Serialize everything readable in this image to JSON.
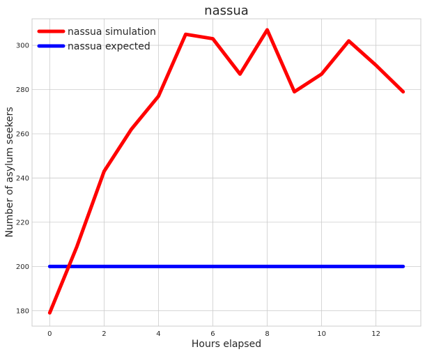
{
  "chart_data": {
    "type": "line",
    "title": "nassua",
    "xlabel": "Hours elapsed",
    "ylabel": "Number of asylum seekers",
    "x": [
      0,
      1,
      2,
      3,
      4,
      5,
      6,
      7,
      8,
      9,
      10,
      11,
      12,
      13
    ],
    "xlim": [
      -0.65,
      13.65
    ],
    "ylim": [
      173,
      312
    ],
    "xticks": [
      0,
      2,
      4,
      6,
      8,
      10,
      12
    ],
    "yticks": [
      180,
      200,
      220,
      240,
      260,
      280,
      300
    ],
    "grid": true,
    "legend_position": "top-left",
    "series": [
      {
        "name": "nassua simulation",
        "color": "#ff0000",
        "values": [
          179,
          209,
          243,
          262,
          277,
          305,
          303,
          287,
          307,
          279,
          287,
          302,
          291,
          279
        ]
      },
      {
        "name": "nassua expected",
        "color": "#0000ff",
        "values": [
          200,
          200,
          200,
          200,
          200,
          200,
          200,
          200,
          200,
          200,
          200,
          200,
          200,
          200
        ]
      }
    ]
  }
}
